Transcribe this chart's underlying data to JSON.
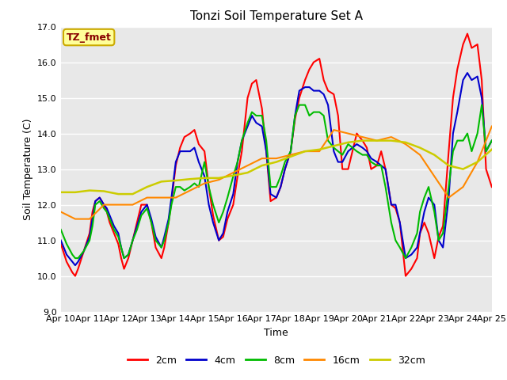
{
  "title": "Tonzi Soil Temperature Set A",
  "xlabel": "Time",
  "ylabel": "Soil Temperature (C)",
  "ylim": [
    9.0,
    17.0
  ],
  "yticks": [
    9.0,
    10.0,
    11.0,
    12.0,
    13.0,
    14.0,
    15.0,
    16.0,
    17.0
  ],
  "xtick_labels": [
    "Apr 10",
    "Apr 11",
    "Apr 12",
    "Apr 13",
    "Apr 14",
    "Apr 15",
    "Apr 16",
    "Apr 17",
    "Apr 18",
    "Apr 19",
    "Apr 20",
    "Apr 21",
    "Apr 22",
    "Apr 23",
    "Apr 24",
    "Apr 25"
  ],
  "fig_bg_color": "#ffffff",
  "plot_bg_color": "#e8e8e8",
  "grid_color": "#ffffff",
  "legend_label": "TZ_fmet",
  "legend_box_facecolor": "#ffff99",
  "legend_box_edgecolor": "#ccaa00",
  "title_fontsize": 11,
  "axis_label_fontsize": 9,
  "tick_fontsize": 8,
  "series": {
    "2cm": {
      "color": "#ff0000",
      "linewidth": 1.5,
      "x": [
        0,
        0.2,
        0.4,
        0.5,
        0.6,
        0.8,
        1.0,
        1.1,
        1.2,
        1.35,
        1.5,
        1.6,
        1.7,
        1.85,
        2.0,
        2.1,
        2.2,
        2.35,
        2.5,
        2.65,
        2.8,
        3.0,
        3.15,
        3.3,
        3.5,
        3.6,
        3.75,
        3.85,
        4.0,
        4.15,
        4.3,
        4.5,
        4.65,
        4.8,
        5.0,
        5.15,
        5.3,
        5.5,
        5.65,
        5.8,
        6.0,
        6.15,
        6.3,
        6.5,
        6.65,
        6.8,
        7.0,
        7.15,
        7.3,
        7.5,
        7.65,
        7.8,
        8.0,
        8.15,
        8.3,
        8.5,
        8.65,
        8.8,
        9.0,
        9.15,
        9.3,
        9.5,
        9.65,
        9.8,
        10.0,
        10.15,
        10.3,
        10.5,
        10.65,
        10.8,
        11.0,
        11.15,
        11.3,
        11.5,
        11.65,
        11.8,
        12.0,
        12.2,
        12.4,
        12.5,
        12.65,
        12.8,
        13.0,
        13.15,
        13.3,
        13.5,
        13.65,
        13.8,
        14.0,
        14.15,
        14.3,
        14.5,
        14.65,
        14.8,
        15.0
      ],
      "y": [
        10.9,
        10.4,
        10.1,
        10.0,
        10.2,
        10.7,
        11.2,
        11.8,
        12.1,
        12.2,
        12.0,
        11.8,
        11.5,
        11.2,
        10.9,
        10.5,
        10.2,
        10.5,
        11.0,
        11.5,
        12.0,
        12.0,
        11.5,
        10.8,
        10.5,
        10.8,
        11.5,
        12.1,
        13.1,
        13.6,
        13.9,
        14.0,
        14.1,
        13.7,
        13.5,
        12.5,
        11.7,
        11.0,
        11.1,
        11.6,
        12.0,
        12.8,
        13.5,
        15.0,
        15.4,
        15.5,
        14.7,
        13.5,
        12.1,
        12.2,
        12.5,
        13.0,
        13.5,
        14.4,
        15.0,
        15.5,
        15.8,
        16.0,
        16.1,
        15.5,
        15.2,
        15.1,
        14.5,
        13.0,
        13.0,
        13.5,
        14.0,
        13.8,
        13.6,
        13.0,
        13.1,
        13.5,
        13.0,
        12.0,
        11.9,
        11.5,
        10.0,
        10.2,
        10.5,
        11.2,
        11.5,
        11.2,
        10.5,
        11.1,
        11.4,
        13.5,
        15.0,
        15.8,
        16.5,
        16.8,
        16.4,
        16.5,
        15.5,
        13.0,
        12.5
      ]
    },
    "4cm": {
      "color": "#0000cc",
      "linewidth": 1.5,
      "x": [
        0,
        0.2,
        0.4,
        0.5,
        0.6,
        0.8,
        1.0,
        1.1,
        1.2,
        1.35,
        1.5,
        1.6,
        1.7,
        1.85,
        2.0,
        2.1,
        2.2,
        2.35,
        2.5,
        2.65,
        2.8,
        3.0,
        3.15,
        3.3,
        3.5,
        3.6,
        3.75,
        3.85,
        4.0,
        4.15,
        4.3,
        4.5,
        4.65,
        4.8,
        5.0,
        5.15,
        5.3,
        5.5,
        5.65,
        5.8,
        6.0,
        6.15,
        6.3,
        6.5,
        6.65,
        6.8,
        7.0,
        7.15,
        7.3,
        7.5,
        7.65,
        7.8,
        8.0,
        8.15,
        8.3,
        8.5,
        8.65,
        8.8,
        9.0,
        9.15,
        9.3,
        9.5,
        9.65,
        9.8,
        10.0,
        10.15,
        10.3,
        10.5,
        10.65,
        10.8,
        11.0,
        11.15,
        11.3,
        11.5,
        11.65,
        11.8,
        12.0,
        12.2,
        12.4,
        12.5,
        12.65,
        12.8,
        13.0,
        13.15,
        13.3,
        13.5,
        13.65,
        13.8,
        14.0,
        14.15,
        14.3,
        14.5,
        14.65,
        14.8,
        15.0
      ],
      "y": [
        11.0,
        10.6,
        10.4,
        10.3,
        10.4,
        10.7,
        11.1,
        11.6,
        12.1,
        12.2,
        12.0,
        11.9,
        11.7,
        11.4,
        11.2,
        10.8,
        10.5,
        10.6,
        11.0,
        11.4,
        11.8,
        12.0,
        11.6,
        11.1,
        10.8,
        11.1,
        11.6,
        12.2,
        13.2,
        13.5,
        13.5,
        13.5,
        13.6,
        13.2,
        12.8,
        12.0,
        11.5,
        11.0,
        11.2,
        11.8,
        12.3,
        13.2,
        13.8,
        14.2,
        14.5,
        14.3,
        14.2,
        13.5,
        12.3,
        12.2,
        12.5,
        13.0,
        13.5,
        14.5,
        15.2,
        15.3,
        15.3,
        15.2,
        15.2,
        15.1,
        14.8,
        13.5,
        13.2,
        13.2,
        13.5,
        13.6,
        13.7,
        13.6,
        13.5,
        13.3,
        13.2,
        13.1,
        13.0,
        12.0,
        12.0,
        11.5,
        10.5,
        10.6,
        10.8,
        11.2,
        11.8,
        12.2,
        12.0,
        11.0,
        10.8,
        12.2,
        14.0,
        14.6,
        15.5,
        15.7,
        15.5,
        15.6,
        15.0,
        13.5,
        13.8
      ]
    },
    "8cm": {
      "color": "#00bb00",
      "linewidth": 1.5,
      "x": [
        0,
        0.2,
        0.4,
        0.5,
        0.6,
        0.8,
        1.0,
        1.1,
        1.2,
        1.35,
        1.5,
        1.6,
        1.7,
        1.85,
        2.0,
        2.1,
        2.2,
        2.35,
        2.5,
        2.65,
        2.8,
        3.0,
        3.15,
        3.3,
        3.5,
        3.6,
        3.75,
        3.85,
        4.0,
        4.15,
        4.3,
        4.5,
        4.65,
        4.8,
        5.0,
        5.15,
        5.3,
        5.5,
        5.65,
        5.8,
        6.0,
        6.15,
        6.3,
        6.5,
        6.65,
        6.8,
        7.0,
        7.15,
        7.3,
        7.5,
        7.65,
        7.8,
        8.0,
        8.15,
        8.3,
        8.5,
        8.65,
        8.8,
        9.0,
        9.15,
        9.3,
        9.5,
        9.65,
        9.8,
        10.0,
        10.15,
        10.3,
        10.5,
        10.65,
        10.8,
        11.0,
        11.15,
        11.3,
        11.5,
        11.65,
        11.8,
        12.0,
        12.2,
        12.4,
        12.5,
        12.65,
        12.8,
        13.0,
        13.15,
        13.3,
        13.5,
        13.65,
        13.8,
        14.0,
        14.15,
        14.3,
        14.5,
        14.65,
        14.8,
        15.0
      ],
      "y": [
        11.3,
        10.9,
        10.6,
        10.5,
        10.5,
        10.7,
        11.0,
        11.4,
        12.0,
        12.1,
        11.9,
        11.8,
        11.6,
        11.3,
        11.1,
        10.8,
        10.5,
        10.6,
        11.0,
        11.3,
        11.7,
        11.9,
        11.5,
        11.0,
        10.8,
        11.0,
        11.5,
        12.0,
        12.5,
        12.5,
        12.4,
        12.5,
        12.6,
        12.5,
        13.2,
        12.5,
        12.0,
        11.5,
        11.8,
        12.2,
        12.8,
        13.2,
        13.8,
        14.3,
        14.6,
        14.5,
        14.5,
        13.8,
        12.5,
        12.5,
        12.8,
        13.2,
        13.5,
        14.5,
        14.8,
        14.8,
        14.5,
        14.6,
        14.6,
        14.5,
        13.8,
        13.6,
        13.5,
        13.4,
        13.7,
        13.6,
        13.5,
        13.4,
        13.4,
        13.2,
        13.1,
        13.1,
        12.5,
        11.5,
        11.0,
        10.8,
        10.5,
        10.8,
        11.2,
        11.8,
        12.2,
        12.5,
        11.8,
        11.0,
        11.2,
        12.5,
        13.5,
        13.8,
        13.8,
        14.0,
        13.5,
        14.0,
        14.8,
        13.5,
        13.8
      ]
    },
    "16cm": {
      "color": "#ff8800",
      "linewidth": 1.5,
      "x": [
        0,
        0.5,
        1.0,
        1.5,
        2.0,
        2.5,
        3.0,
        3.5,
        4.0,
        4.5,
        5.0,
        5.5,
        6.0,
        6.5,
        7.0,
        7.5,
        8.0,
        8.5,
        9.0,
        9.5,
        10.0,
        10.5,
        11.0,
        11.5,
        12.0,
        12.5,
        13.0,
        13.5,
        14.0,
        14.5,
        15.0
      ],
      "y": [
        11.8,
        11.6,
        11.6,
        12.0,
        12.0,
        12.0,
        12.2,
        12.2,
        12.2,
        12.4,
        12.6,
        12.7,
        12.9,
        13.1,
        13.3,
        13.3,
        13.4,
        13.5,
        13.5,
        14.1,
        14.0,
        13.9,
        13.8,
        13.9,
        13.7,
        13.4,
        12.8,
        12.2,
        12.5,
        13.2,
        14.2
      ]
    },
    "32cm": {
      "color": "#cccc00",
      "linewidth": 1.8,
      "x": [
        0,
        0.5,
        1.0,
        1.5,
        2.0,
        2.5,
        3.0,
        3.5,
        4.0,
        4.5,
        5.0,
        5.5,
        6.0,
        6.5,
        7.0,
        7.5,
        8.0,
        8.5,
        9.0,
        9.5,
        10.0,
        10.5,
        11.0,
        11.5,
        12.0,
        12.5,
        13.0,
        13.5,
        14.0,
        14.5,
        15.0
      ],
      "y": [
        12.35,
        12.35,
        12.4,
        12.38,
        12.3,
        12.3,
        12.5,
        12.65,
        12.68,
        12.72,
        12.75,
        12.75,
        12.82,
        12.9,
        13.1,
        13.2,
        13.35,
        13.5,
        13.55,
        13.65,
        13.75,
        13.8,
        13.8,
        13.8,
        13.75,
        13.6,
        13.4,
        13.1,
        13.0,
        13.2,
        13.55
      ]
    }
  }
}
